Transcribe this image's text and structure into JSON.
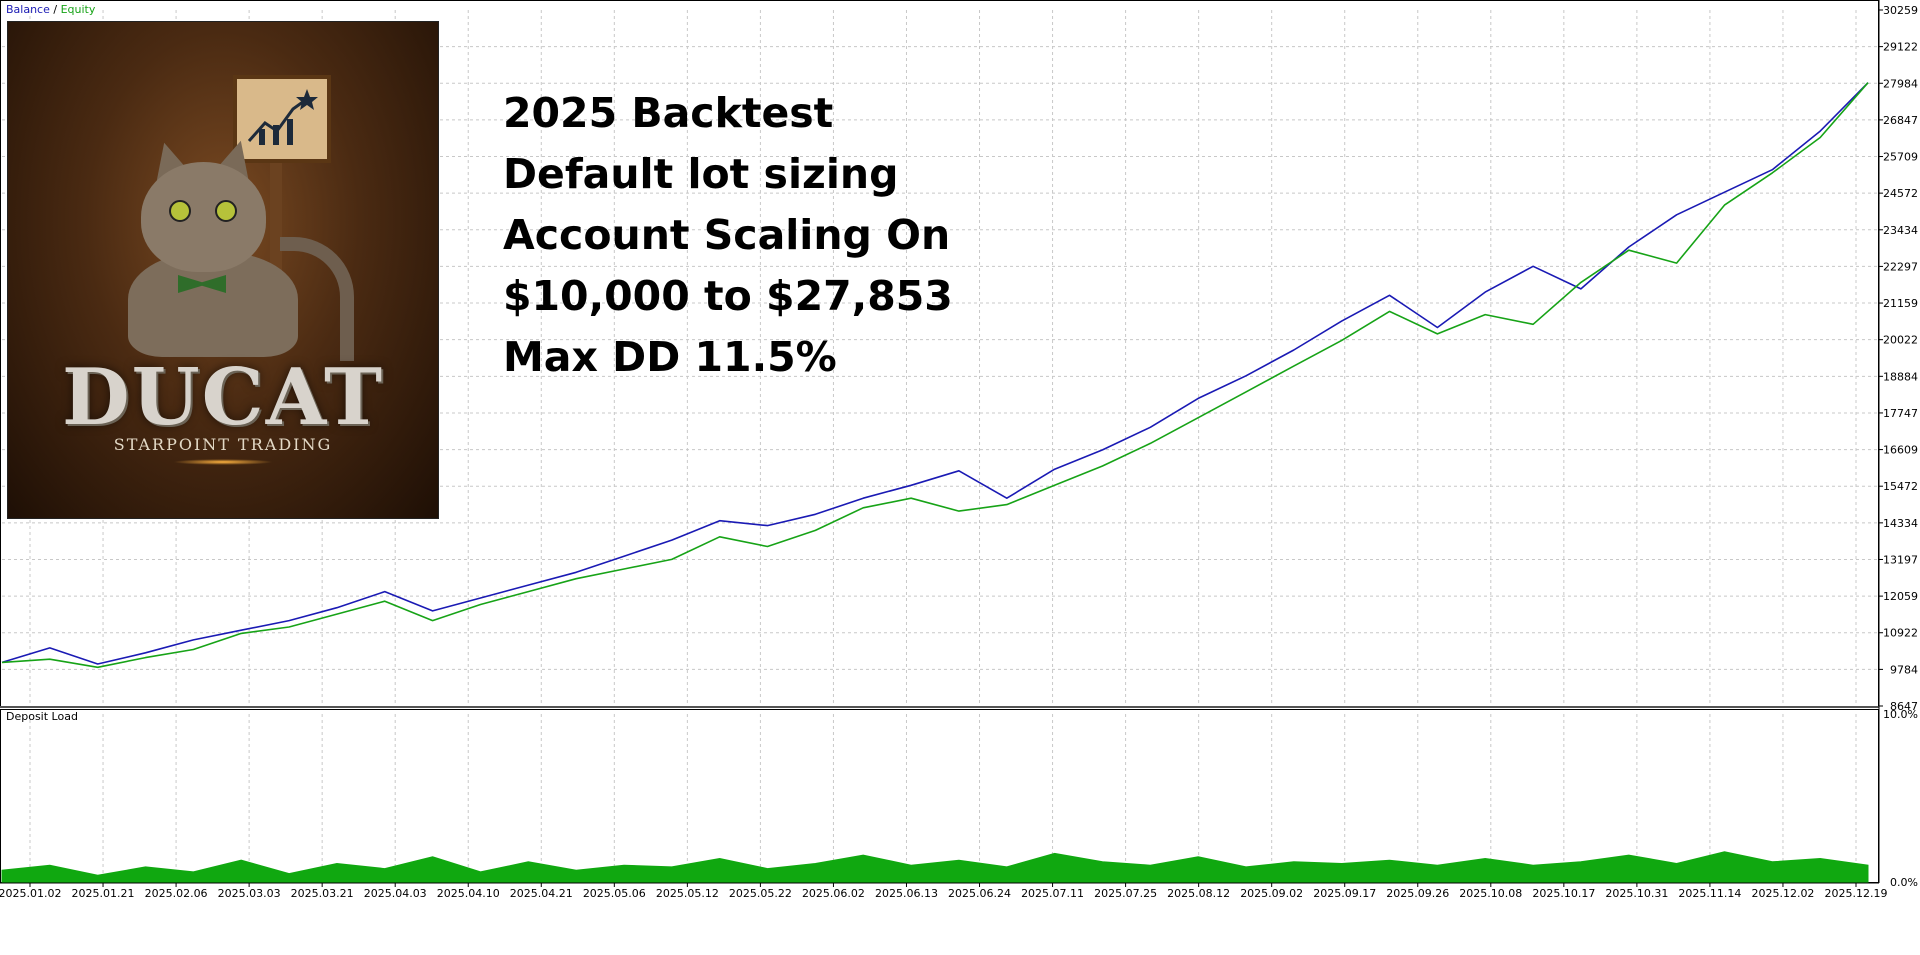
{
  "legend": {
    "balance": "Balance",
    "separator": " / ",
    "equity": "Equity"
  },
  "lower_panel_label": "Deposit Load",
  "overlay_text": [
    "2025 Backtest",
    "Default lot sizing",
    "Account Scaling On",
    "$10,000 to $27,853",
    "Max DD 11.5%"
  ],
  "logo": {
    "title": "DUCAT",
    "subtitle": "STARPOINT TRADING"
  },
  "colors": {
    "balance": "#1a1ab4",
    "equity": "#17a317",
    "deposit_load": "#10a810",
    "grid": "#c8c8c8"
  },
  "chart_data": [
    {
      "type": "line",
      "series": [
        {
          "name": "Balance",
          "color": "#1a1ab4",
          "values": [
            10000,
            10450,
            9950,
            10300,
            10700,
            11000,
            11300,
            11700,
            12200,
            11600,
            12000,
            12400,
            12800,
            13300,
            13800,
            14400,
            14250,
            14600,
            15100,
            15500,
            15950,
            15100,
            16000,
            16600,
            17300,
            18200,
            18900,
            19700,
            20600,
            21400,
            20400,
            21500,
            22300,
            21600,
            22900,
            23900,
            24600,
            25300,
            26500,
            28000
          ]
        },
        {
          "name": "Equity",
          "color": "#17a317",
          "values": [
            10000,
            10100,
            9850,
            10150,
            10400,
            10900,
            11100,
            11500,
            11900,
            11300,
            11800,
            12200,
            12600,
            12900,
            13200,
            13900,
            13600,
            14100,
            14800,
            15100,
            14700,
            14900,
            15500,
            16100,
            16800,
            17600,
            18400,
            19200,
            20000,
            20900,
            20200,
            20800,
            20500,
            21800,
            22800,
            22400,
            24200,
            25200,
            26300,
            28000
          ]
        }
      ],
      "yticks": [
        30259,
        29122,
        27984,
        26847,
        25709,
        24572,
        23434,
        22297,
        21159,
        20022,
        18884,
        17747,
        16609,
        15472,
        14334,
        13197,
        12059,
        10922,
        9784,
        8647
      ],
      "ylim": [
        8647,
        30259
      ],
      "grid": true
    },
    {
      "type": "area",
      "title": "Deposit Load",
      "yticks": [
        "10.0%",
        "0.0%"
      ],
      "ylim": [
        0,
        10
      ],
      "series": [
        {
          "name": "Deposit Load",
          "color": "#10a810",
          "values": [
            0.7,
            1.0,
            0.4,
            0.9,
            0.6,
            1.3,
            0.5,
            1.1,
            0.8,
            1.5,
            0.6,
            1.2,
            0.7,
            1.0,
            0.9,
            1.4,
            0.8,
            1.1,
            1.6,
            1.0,
            1.3,
            0.9,
            1.7,
            1.2,
            1.0,
            1.5,
            0.9,
            1.2,
            1.1,
            1.3,
            1.0,
            1.4,
            1.0,
            1.2,
            1.6,
            1.1,
            1.8,
            1.2,
            1.4,
            1.0
          ]
        }
      ]
    }
  ],
  "xticks": [
    "2025.01.02",
    "2025.01.21",
    "2025.02.06",
    "2025.03.03",
    "2025.03.21",
    "2025.04.03",
    "2025.04.10",
    "2025.04.21",
    "2025.05.06",
    "2025.05.12",
    "2025.05.22",
    "2025.06.02",
    "2025.06.13",
    "2025.06.24",
    "2025.07.11",
    "2025.07.25",
    "2025.08.12",
    "2025.09.02",
    "2025.09.17",
    "2025.09.26",
    "2025.10.08",
    "2025.10.17",
    "2025.10.31",
    "2025.11.14",
    "2025.12.02",
    "2025.12.19"
  ]
}
